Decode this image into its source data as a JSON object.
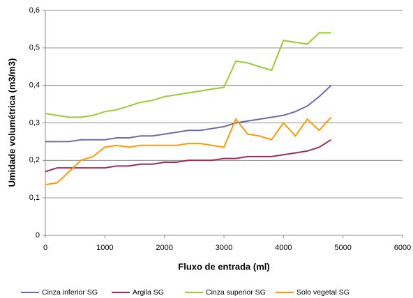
{
  "chart_data": {
    "type": "line",
    "x_label": "Fluxo de entrada (ml)",
    "y_label": "Umidade volumétrica (m3/m3)",
    "x": [
      0,
      200,
      400,
      600,
      800,
      1000,
      1200,
      1400,
      1600,
      1800,
      2000,
      2200,
      2400,
      2600,
      2800,
      3000,
      3200,
      3400,
      3600,
      3800,
      4000,
      4200,
      4400,
      4600,
      4800
    ],
    "series": [
      {
        "name": "Cinza inferior SG",
        "color": "#6b6bab",
        "values": [
          0.25,
          0.25,
          0.25,
          0.255,
          0.255,
          0.255,
          0.26,
          0.26,
          0.265,
          0.265,
          0.27,
          0.275,
          0.28,
          0.28,
          0.285,
          0.29,
          0.3,
          0.305,
          0.31,
          0.315,
          0.32,
          0.33,
          0.345,
          0.37,
          0.4
        ]
      },
      {
        "name": "Argila SG",
        "color": "#9e2b5e",
        "values": [
          0.17,
          0.18,
          0.18,
          0.18,
          0.18,
          0.18,
          0.185,
          0.185,
          0.19,
          0.19,
          0.195,
          0.195,
          0.2,
          0.2,
          0.2,
          0.205,
          0.205,
          0.21,
          0.21,
          0.21,
          0.215,
          0.22,
          0.225,
          0.235,
          0.255
        ]
      },
      {
        "name": "Cinza superior SG",
        "color": "#99cc33",
        "values": [
          0.325,
          0.32,
          0.315,
          0.315,
          0.32,
          0.33,
          0.335,
          0.345,
          0.355,
          0.36,
          0.37,
          0.375,
          0.38,
          0.385,
          0.39,
          0.395,
          0.465,
          0.46,
          0.45,
          0.44,
          0.52,
          0.515,
          0.51,
          0.54,
          0.54
        ]
      },
      {
        "name": "Solo vegetal SG",
        "color": "#ff9900",
        "values": [
          0.135,
          0.14,
          0.17,
          0.2,
          0.21,
          0.235,
          0.24,
          0.235,
          0.24,
          0.24,
          0.24,
          0.24,
          0.245,
          0.245,
          0.24,
          0.235,
          0.31,
          0.27,
          0.265,
          0.255,
          0.3,
          0.265,
          0.31,
          0.28,
          0.315
        ]
      }
    ],
    "xlim": [
      0,
      6000
    ],
    "xticks": [
      0,
      1000,
      2000,
      3000,
      4000,
      5000,
      6000
    ],
    "ylim": [
      0,
      0.6
    ],
    "yticks": [
      0,
      {
        "value": 0.1,
        "label": "0,1"
      },
      {
        "value": 0.2,
        "label": "0,2"
      },
      {
        "value": 0.3,
        "label": "0,3"
      },
      {
        "value": 0.4,
        "label": "0,4"
      },
      {
        "value": 0.5,
        "label": "0,5"
      },
      {
        "value": 0.6,
        "label": "0,6"
      }
    ],
    "grid": true,
    "legend": "bottom"
  }
}
